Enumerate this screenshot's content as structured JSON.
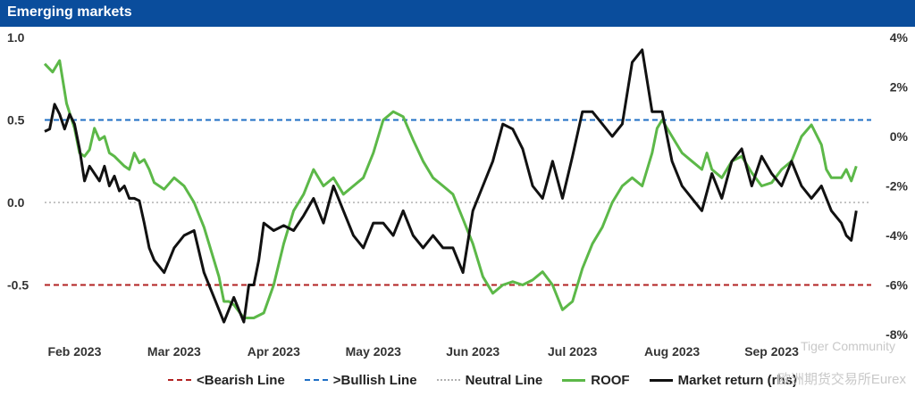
{
  "title": "Emerging markets",
  "watermark": {
    "line1": "Tiger Community",
    "line2": "欧洲期货交易所Eurex"
  },
  "colors": {
    "header_bg": "#0a4d9c",
    "roof": "#5cb848",
    "market": "#111111",
    "bearish": "#b22222",
    "bullish": "#1f6fc5",
    "neutral": "#b0b0b0"
  },
  "legend": [
    {
      "label": "<Bearish Line",
      "key": "bearish",
      "style": "dashed"
    },
    {
      "label": ">Bullish Line",
      "key": "bullish",
      "style": "dashed"
    },
    {
      "label": "Neutral Line",
      "key": "neutral",
      "style": "dotted"
    },
    {
      "label": "ROOF",
      "key": "roof",
      "style": "solid"
    },
    {
      "label": "Market return (rhs)",
      "key": "market",
      "style": "solid"
    }
  ],
  "chart_data": {
    "type": "line",
    "title": "Emerging markets",
    "x_range": [
      0,
      8.3
    ],
    "x_tick_labels": [
      {
        "label": "Feb 2023",
        "x": 0.3
      },
      {
        "label": "Mar 2023",
        "x": 1.3
      },
      {
        "label": "Apr 2023",
        "x": 2.3
      },
      {
        "label": "May 2023",
        "x": 3.3
      },
      {
        "label": "Jun 2023",
        "x": 4.3
      },
      {
        "label": "Jul 2023",
        "x": 5.3
      },
      {
        "label": "Aug 2023",
        "x": 6.3
      },
      {
        "label": "Sep 2023",
        "x": 7.3
      }
    ],
    "y_left": {
      "range": [
        -0.8,
        1.0
      ],
      "ticks": [
        1.0,
        0.5,
        0.0,
        -0.5
      ],
      "tick_labels": [
        "1.0",
        "0.5",
        "0.0",
        "-0.5"
      ]
    },
    "y_right": {
      "range": [
        -8,
        4
      ],
      "ticks": [
        4,
        2,
        0,
        -2,
        -4,
        -6,
        -8
      ],
      "tick_labels": [
        "4%",
        "2%",
        "0%",
        "-2%",
        "-4%",
        "-6%",
        "-8%"
      ]
    },
    "reference_lines": [
      {
        "name": "<Bearish Line",
        "y": -0.5
      },
      {
        "name": ">Bullish Line",
        "y": 0.5
      },
      {
        "name": "Neutral Line",
        "y": 0.0
      }
    ],
    "series": [
      {
        "name": "ROOF",
        "axis": "left",
        "x": [
          0,
          0.08,
          0.15,
          0.22,
          0.3,
          0.35,
          0.4,
          0.45,
          0.5,
          0.55,
          0.6,
          0.65,
          0.7,
          0.75,
          0.8,
          0.85,
          0.9,
          0.95,
          1.0,
          1.05,
          1.1,
          1.2,
          1.3,
          1.4,
          1.5,
          1.6,
          1.7,
          1.75,
          1.8,
          1.85,
          1.9,
          2.0,
          2.1,
          2.2,
          2.3,
          2.4,
          2.5,
          2.6,
          2.7,
          2.8,
          2.9,
          3.0,
          3.1,
          3.2,
          3.3,
          3.4,
          3.5,
          3.6,
          3.7,
          3.8,
          3.9,
          4.0,
          4.1,
          4.2,
          4.3,
          4.4,
          4.5,
          4.6,
          4.7,
          4.8,
          4.9,
          5.0,
          5.1,
          5.2,
          5.3,
          5.4,
          5.5,
          5.6,
          5.7,
          5.8,
          5.9,
          6.0,
          6.1,
          6.15,
          6.2,
          6.3,
          6.4,
          6.5,
          6.6,
          6.65,
          6.7,
          6.8,
          6.9,
          7.0,
          7.1,
          7.2,
          7.3,
          7.4,
          7.5,
          7.6,
          7.7,
          7.8,
          7.85,
          7.9,
          8.0,
          8.05,
          8.1,
          8.15
        ],
        "values": [
          0.84,
          0.79,
          0.86,
          0.6,
          0.45,
          0.3,
          0.28,
          0.32,
          0.45,
          0.38,
          0.4,
          0.3,
          0.28,
          0.25,
          0.22,
          0.2,
          0.3,
          0.24,
          0.26,
          0.2,
          0.12,
          0.08,
          0.15,
          0.1,
          0.0,
          -0.15,
          -0.35,
          -0.45,
          -0.6,
          -0.6,
          -0.62,
          -0.7,
          -0.7,
          -0.67,
          -0.5,
          -0.25,
          -0.05,
          0.05,
          0.2,
          0.1,
          0.15,
          0.05,
          0.1,
          0.15,
          0.3,
          0.5,
          0.55,
          0.52,
          0.38,
          0.25,
          0.15,
          0.1,
          0.05,
          -0.1,
          -0.25,
          -0.45,
          -0.55,
          -0.5,
          -0.48,
          -0.5,
          -0.47,
          -0.42,
          -0.5,
          -0.65,
          -0.6,
          -0.4,
          -0.25,
          -0.15,
          0.0,
          0.1,
          0.15,
          0.1,
          0.3,
          0.45,
          0.5,
          0.4,
          0.3,
          0.25,
          0.2,
          0.3,
          0.2,
          0.15,
          0.25,
          0.28,
          0.18,
          0.1,
          0.12,
          0.2,
          0.25,
          0.4,
          0.47,
          0.35,
          0.2,
          0.15,
          0.15,
          0.2,
          0.13,
          0.22
        ]
      },
      {
        "name": "Market return (rhs)",
        "axis": "right",
        "x": [
          0,
          0.05,
          0.1,
          0.15,
          0.2,
          0.25,
          0.3,
          0.35,
          0.4,
          0.45,
          0.5,
          0.55,
          0.6,
          0.65,
          0.7,
          0.75,
          0.8,
          0.85,
          0.9,
          0.95,
          1.0,
          1.05,
          1.1,
          1.2,
          1.3,
          1.4,
          1.5,
          1.6,
          1.7,
          1.8,
          1.9,
          2.0,
          2.05,
          2.1,
          2.15,
          2.2,
          2.3,
          2.4,
          2.5,
          2.6,
          2.7,
          2.8,
          2.9,
          3.0,
          3.1,
          3.2,
          3.3,
          3.4,
          3.5,
          3.6,
          3.7,
          3.8,
          3.9,
          4.0,
          4.1,
          4.2,
          4.3,
          4.4,
          4.5,
          4.6,
          4.7,
          4.8,
          4.9,
          5.0,
          5.1,
          5.2,
          5.3,
          5.4,
          5.5,
          5.6,
          5.7,
          5.8,
          5.9,
          6.0,
          6.1,
          6.2,
          6.3,
          6.4,
          6.5,
          6.6,
          6.7,
          6.8,
          6.9,
          7.0,
          7.1,
          7.2,
          7.3,
          7.4,
          7.5,
          7.6,
          7.7,
          7.8,
          7.9,
          8.0,
          8.05,
          8.1,
          8.15
        ],
        "values": [
          0.2,
          0.3,
          1.3,
          0.9,
          0.3,
          0.9,
          0.5,
          -0.5,
          -1.8,
          -1.2,
          -1.5,
          -1.8,
          -1.2,
          -2.0,
          -1.6,
          -2.2,
          -2.0,
          -2.5,
          -2.5,
          -2.6,
          -3.5,
          -4.5,
          -5.0,
          -5.5,
          -4.5,
          -4.0,
          -3.8,
          -5.5,
          -6.5,
          -7.5,
          -6.5,
          -7.5,
          -6.0,
          -6.0,
          -5.0,
          -3.5,
          -3.8,
          -3.6,
          -3.8,
          -3.2,
          -2.5,
          -3.5,
          -2.0,
          -3.0,
          -4.0,
          -4.5,
          -3.5,
          -3.5,
          -4.0,
          -3.0,
          -4.0,
          -4.5,
          -4.0,
          -4.5,
          -4.5,
          -5.5,
          -3.0,
          -2.0,
          -1.0,
          0.5,
          0.3,
          -0.5,
          -2.0,
          -2.5,
          -1.0,
          -2.5,
          -0.8,
          1.0,
          1.0,
          0.5,
          0.0,
          0.5,
          3.0,
          3.5,
          1.0,
          1.0,
          -1.0,
          -2.0,
          -2.5,
          -3.0,
          -1.5,
          -2.5,
          -1.0,
          -0.5,
          -2.0,
          -0.8,
          -1.5,
          -2.0,
          -1.0,
          -2.0,
          -2.5,
          -2.0,
          -3.0,
          -3.5,
          -4.0,
          -4.2,
          -3.0
        ]
      }
    ]
  }
}
